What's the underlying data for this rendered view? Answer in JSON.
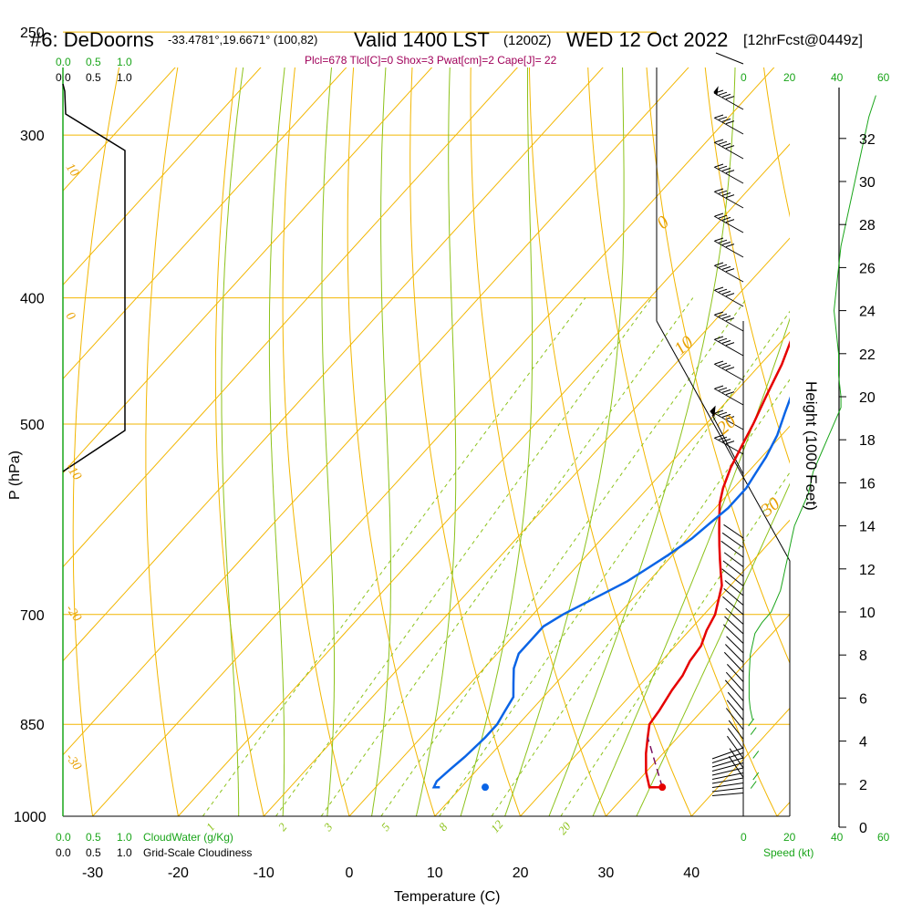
{
  "title": {
    "station": "#6: DeDoorns",
    "coords": "-33.4781°,19.6671° (100,82)",
    "valid": "Valid 1400 LST",
    "utc": "(1200Z)",
    "date": "WED 12 Oct 2022",
    "forecast": "[12hrFcst@0449z]"
  },
  "params_line": "Plcl=678 Tlcl[C]=0 Shox=3 Pwat[cm]=2 Cape[J]= 22",
  "labels": {
    "pressure_axis": "P (hPa)",
    "temperature_axis": "Temperature (C)",
    "height_axis": "Height (1000 Feet)",
    "speed_axis": "Speed (kt)",
    "cloud_water": "CloudWater (g/Kg)",
    "cloudiness": "Grid-Scale Cloudiness"
  },
  "cloud_scale": [
    "0.0",
    "0.5",
    "1.0"
  ],
  "speed_scale": [
    "0",
    "20",
    "40",
    "60"
  ],
  "colors": {
    "isobar": "#f2b600",
    "dry_adiabat": "#f2b600",
    "moist_adiabat": "#8cc21a",
    "mixing_ratio": "#8cc21a",
    "temperature": "#e60000",
    "dewpoint": "#0a64e6",
    "parcel": "#7a1060",
    "speed": "#1aa51a",
    "params": "#a0005a"
  },
  "chart_data": {
    "type": "line",
    "pressure_ticks": [
      250,
      300,
      400,
      500,
      700,
      850,
      1000
    ],
    "temperature_ticks": [
      -30,
      -20,
      -10,
      0,
      10,
      20,
      30,
      40
    ],
    "height_ticks": [
      0,
      2,
      4,
      6,
      8,
      10,
      12,
      14,
      16,
      18,
      20,
      22,
      24,
      26,
      28,
      30,
      32
    ],
    "isotherm_labels": [
      "0",
      "10",
      "20",
      "30"
    ],
    "dry_adiabat_labels": [
      "10",
      "0",
      "-10",
      "-20",
      "-30"
    ],
    "mixing_ratio_labels": [
      "1",
      "2",
      "3",
      "5",
      "8",
      "12",
      "20"
    ],
    "series": [
      {
        "name": "temperature",
        "points": [
          [
            33.5,
            950
          ],
          [
            32,
            950
          ],
          [
            30,
            925
          ],
          [
            28,
            895
          ],
          [
            26.5,
            870
          ],
          [
            25.3,
            850
          ],
          [
            25,
            830
          ],
          [
            24.3,
            800
          ],
          [
            24,
            780
          ],
          [
            23.3,
            760
          ],
          [
            23,
            740
          ],
          [
            22,
            720
          ],
          [
            21.3,
            700
          ],
          [
            20,
            680
          ],
          [
            19,
            665
          ],
          [
            17.5,
            650
          ],
          [
            16,
            635
          ],
          [
            14.5,
            620
          ],
          [
            13,
            605
          ],
          [
            11.5,
            590
          ],
          [
            10,
            575
          ],
          [
            8.8,
            560
          ],
          [
            7.5,
            540
          ],
          [
            6.5,
            520
          ],
          [
            5.5,
            500
          ],
          [
            4,
            475
          ],
          [
            2.5,
            450
          ],
          [
            0.5,
            425
          ],
          [
            -1,
            400
          ],
          [
            -3,
            375
          ],
          [
            -5.5,
            350
          ],
          [
            -9,
            325
          ],
          [
            -12,
            305
          ],
          [
            -15,
            285
          ],
          [
            -17,
            270
          ],
          [
            -18.5,
            256
          ]
        ]
      },
      {
        "name": "dewpoint",
        "points": [
          [
            7.5,
            950
          ],
          [
            6.8,
            950
          ],
          [
            6.5,
            940
          ],
          [
            6.8,
            920
          ],
          [
            7.2,
            900
          ],
          [
            7.5,
            870
          ],
          [
            7.5,
            850
          ],
          [
            7,
            830
          ],
          [
            6.5,
            810
          ],
          [
            5,
            790
          ],
          [
            3.5,
            770
          ],
          [
            2.5,
            750
          ],
          [
            2.5,
            730
          ],
          [
            2.5,
            715
          ],
          [
            3.5,
            700
          ],
          [
            4.5,
            690
          ],
          [
            6,
            675
          ],
          [
            7.5,
            660
          ],
          [
            8.5,
            645
          ],
          [
            9.5,
            630
          ],
          [
            10.5,
            612
          ],
          [
            11,
            595
          ],
          [
            11.5,
            580
          ],
          [
            11.5,
            560
          ],
          [
            11,
            545
          ],
          [
            10.5,
            530
          ],
          [
            9.5,
            510
          ],
          [
            8,
            490
          ],
          [
            6.5,
            470
          ],
          [
            5,
            450
          ],
          [
            3,
            430
          ],
          [
            1,
            410
          ],
          [
            -1.5,
            390
          ],
          [
            -4,
            370
          ],
          [
            -7,
            350
          ],
          [
            -10.5,
            330
          ],
          [
            -14,
            310
          ],
          [
            -17,
            293
          ],
          [
            -20,
            278
          ],
          [
            -23,
            266
          ],
          [
            -25,
            256
          ]
        ]
      },
      {
        "name": "parcel",
        "points": [
          [
            33.5,
            950
          ],
          [
            26.5,
            870
          ]
        ]
      }
    ],
    "surface_temperature_point": [
      33.5,
      950
    ],
    "surface_dewpoint_point": [
      12.8,
      950
    ],
    "wind_speed_profile": [
      [
        4,
        5
      ],
      [
        3,
        5.5
      ],
      [
        2.5,
        6
      ],
      [
        2.5,
        7
      ],
      [
        3,
        8
      ],
      [
        5,
        9
      ],
      [
        8,
        9.5
      ],
      [
        12,
        10
      ],
      [
        14,
        10.5
      ],
      [
        16,
        11
      ],
      [
        17,
        11.5
      ],
      [
        18,
        12
      ],
      [
        19,
        12.5
      ],
      [
        20,
        13
      ],
      [
        21,
        13.5
      ],
      [
        22,
        14
      ],
      [
        24,
        14.5
      ],
      [
        26,
        15
      ],
      [
        28,
        15.5
      ],
      [
        29,
        16
      ],
      [
        30,
        16.5
      ],
      [
        32,
        17
      ],
      [
        34,
        17.5
      ],
      [
        36,
        18
      ],
      [
        38,
        18.5
      ],
      [
        40,
        19
      ],
      [
        42,
        19.5
      ],
      [
        42,
        20
      ],
      [
        41,
        21
      ],
      [
        41,
        22
      ],
      [
        40,
        23
      ],
      [
        39,
        24
      ],
      [
        40,
        25
      ],
      [
        41,
        26
      ],
      [
        42,
        27
      ],
      [
        44,
        28
      ],
      [
        46,
        29
      ],
      [
        48,
        30
      ],
      [
        50,
        31
      ],
      [
        52,
        32
      ],
      [
        54,
        33
      ],
      [
        57,
        34
      ]
    ],
    "surface_speed_marks": [
      [
        4,
        1.8
      ],
      [
        5,
        2.2
      ],
      [
        5,
        3.2
      ],
      [
        4,
        4.3
      ],
      [
        3,
        4.7
      ]
    ],
    "xlim": [
      -34,
      47
    ],
    "ylim": [
      1000,
      250
    ],
    "grid": true
  }
}
